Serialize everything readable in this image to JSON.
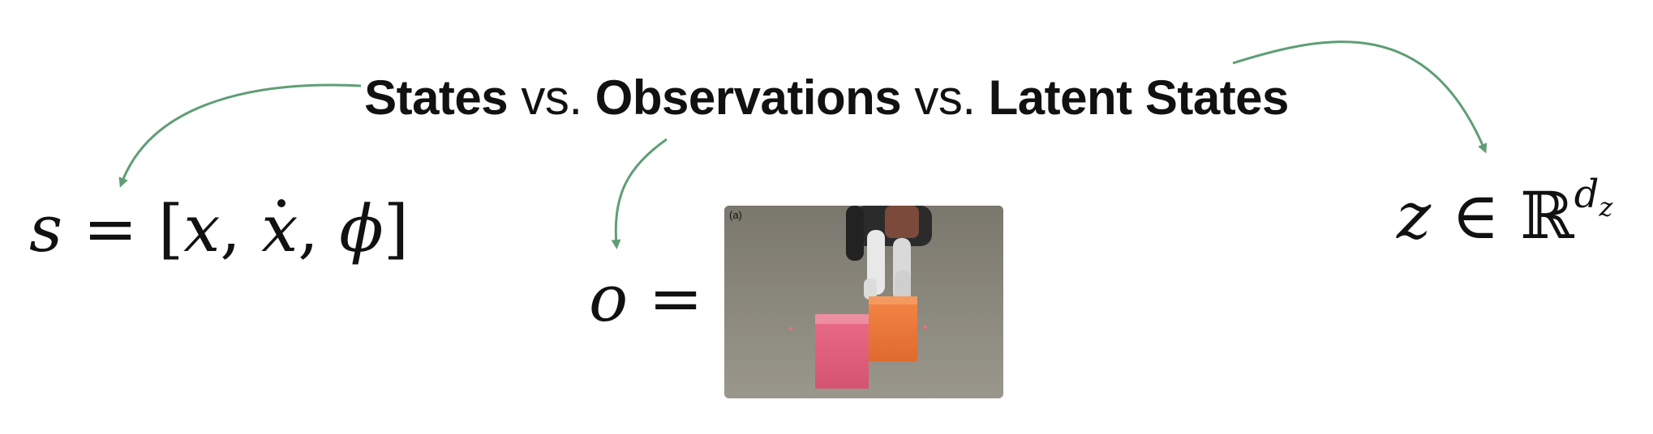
{
  "title": {
    "part1": "States",
    "sep1": "vs.",
    "part2": "Observations",
    "sep2": "vs.",
    "part3": "Latent States"
  },
  "state_equation": {
    "lhs": "s",
    "equals": "=",
    "open": "[",
    "var1": "x",
    "comma1": ",",
    "var2": "x",
    "comma2": ",",
    "var3": "ϕ",
    "close": "]"
  },
  "observation_equation": {
    "lhs": "o",
    "equals": "="
  },
  "latent_equation": {
    "lhs": "z",
    "elem": "∈",
    "space": "ℝ",
    "dim": "d",
    "dim_sub": "z"
  },
  "image_panel": {
    "label": "(a)"
  },
  "colors": {
    "arrow": "#5f9e75",
    "pink_cube": "#e0607a",
    "orange_cube": "#ee7a3c"
  }
}
